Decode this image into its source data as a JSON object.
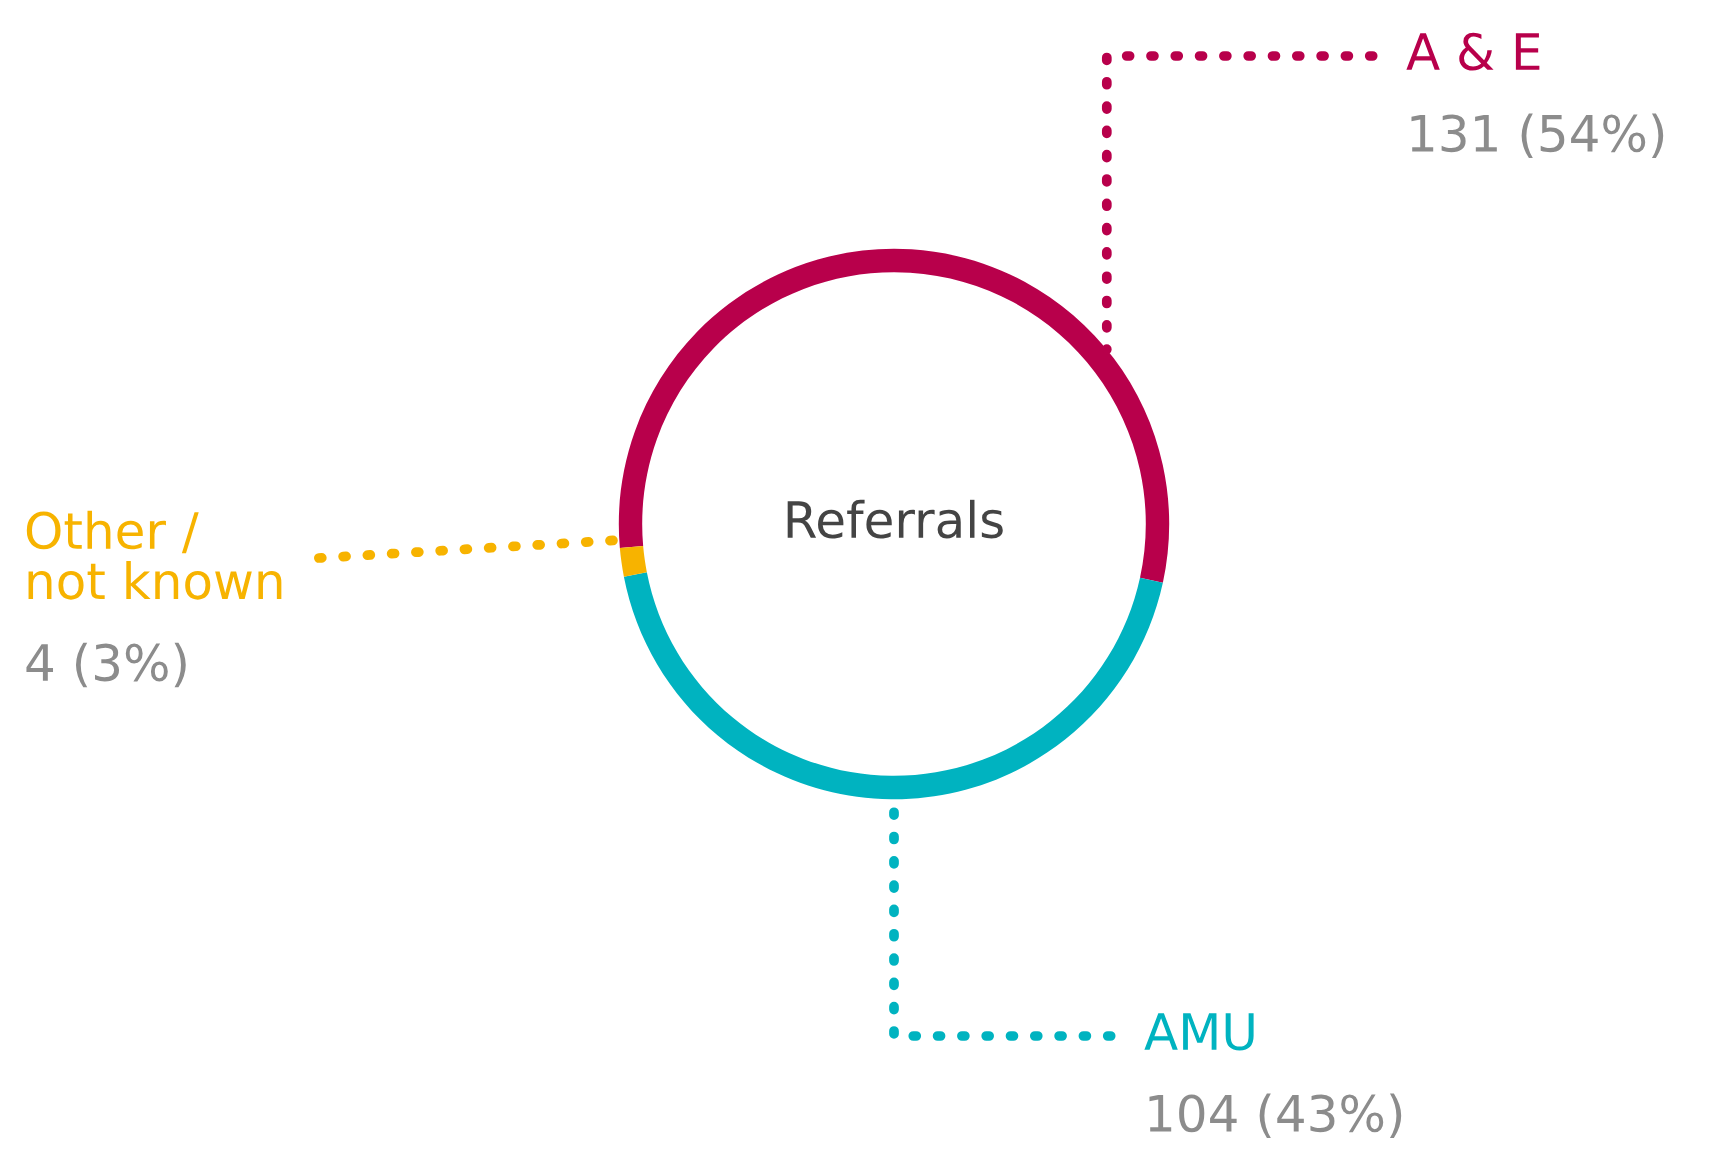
{
  "chart_data": {
    "type": "donut",
    "title": "Referrals",
    "categories": [
      "A & E",
      "AMU",
      "Other /\nnot known"
    ],
    "values": [
      131,
      104,
      4
    ],
    "value_labels": [
      "131 (54%)",
      "104 (43%)",
      "4 (3%)"
    ],
    "colors": [
      "#b8004b",
      "#00b3c0",
      "#f7b300"
    ],
    "legend": false
  }
}
